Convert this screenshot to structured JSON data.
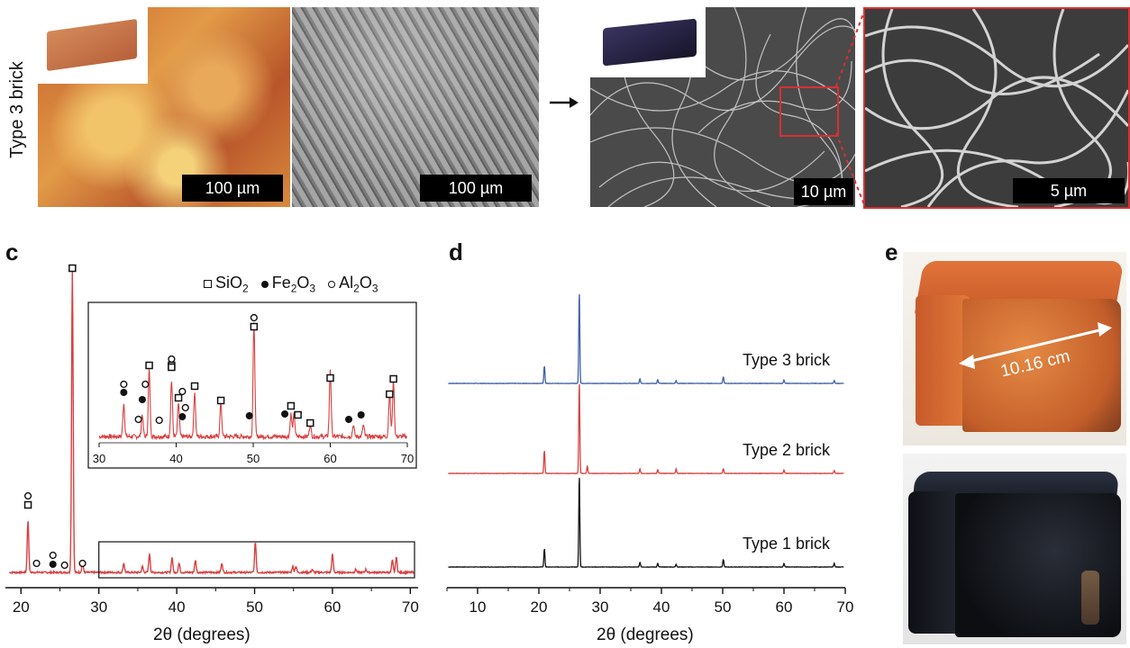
{
  "top": {
    "row_label": "Type 3 brick",
    "scalebars": [
      "100 µm",
      "100 µm",
      "10 µm",
      "5 µm"
    ]
  },
  "panel_c": {
    "letter": "c",
    "xlabel": "2θ (degrees)",
    "xticks": [
      "20",
      "30",
      "40",
      "50",
      "60",
      "70"
    ],
    "inset_xticks": [
      "30",
      "40",
      "50",
      "60",
      "70"
    ],
    "legend": {
      "sio2_label": "SiO",
      "sio2_sub": "2",
      "fe2o3_label_a": "Fe",
      "fe2o3_sub_a": "2",
      "fe2o3_label_b": "O",
      "fe2o3_sub_b": "3",
      "al2o3_label_a": "Al",
      "al2o3_sub_a": "2",
      "al2o3_label_b": "O",
      "al2o3_sub_b": "3"
    },
    "color": "#d94040"
  },
  "panel_d": {
    "letter": "d",
    "xlabel": "2θ (degrees)",
    "xticks": [
      "10",
      "20",
      "30",
      "40",
      "50",
      "60",
      "70"
    ],
    "labels": [
      "Type 3 brick",
      "Type 2 brick",
      "Type 1 brick"
    ],
    "colors": [
      "#4060a8",
      "#d94040",
      "#111111"
    ]
  },
  "panel_e": {
    "letter": "e",
    "dimension": "10.16 cm"
  },
  "chart_data": [
    {
      "type": "line",
      "panel": "c",
      "xlabel": "2θ (degrees)",
      "xlim": [
        18,
        71
      ],
      "series": [
        {
          "x": [
            20.9,
            26.6,
            27.9,
            33.2,
            35.6,
            36.5,
            39.4,
            40.3,
            42.4,
            45.8,
            50.1,
            54.9,
            55.3,
            57.4,
            60.0,
            63.0,
            64.3,
            67.7,
            68.2
          ],
          "values": [
            0.17,
            1.0,
            0.03,
            0.03,
            0.02,
            0.06,
            0.05,
            0.03,
            0.04,
            0.03,
            0.1,
            0.02,
            0.02,
            0.01,
            0.06,
            0.01,
            0.01,
            0.04,
            0.05
          ]
        }
      ],
      "markers": [
        {
          "type": "SiO2",
          "x": [
            20.9,
            26.6,
            36.5,
            39.4,
            40.3,
            42.4,
            45.8,
            50.1,
            54.9,
            55.3,
            57.4,
            60.0,
            67.7,
            68.2
          ]
        },
        {
          "type": "Fe2O3",
          "x": [
            24.1,
            33.2,
            35.6,
            40.8,
            49.5,
            54.1,
            62.4,
            64.0
          ]
        },
        {
          "type": "Al2O3",
          "x": [
            20.9,
            22.0,
            24.1,
            25.6,
            27.9,
            33.2,
            35.1,
            37.8,
            39.4,
            40.8,
            50.1
          ]
        }
      ]
    },
    {
      "type": "line",
      "panel": "d",
      "xlabel": "2θ (degrees)",
      "xlim": [
        5,
        70
      ],
      "series": [
        {
          "name": "Type 3 brick",
          "x": [
            20.9,
            26.6,
            36.5,
            39.4,
            42.4,
            50.1,
            60.0,
            68.2
          ],
          "values": [
            0.19,
            1.0,
            0.05,
            0.04,
            0.03,
            0.07,
            0.04,
            0.03
          ]
        },
        {
          "name": "Type 2 brick",
          "x": [
            20.9,
            26.6,
            27.9,
            36.5,
            39.4,
            42.4,
            50.1,
            60.0,
            68.2
          ],
          "values": [
            0.25,
            1.0,
            0.08,
            0.05,
            0.04,
            0.05,
            0.05,
            0.04,
            0.03
          ]
        },
        {
          "name": "Type 1 brick",
          "x": [
            20.9,
            26.6,
            36.5,
            39.4,
            42.4,
            50.1,
            60.0,
            68.2
          ],
          "values": [
            0.2,
            1.0,
            0.05,
            0.04,
            0.03,
            0.08,
            0.04,
            0.04
          ]
        }
      ]
    }
  ]
}
